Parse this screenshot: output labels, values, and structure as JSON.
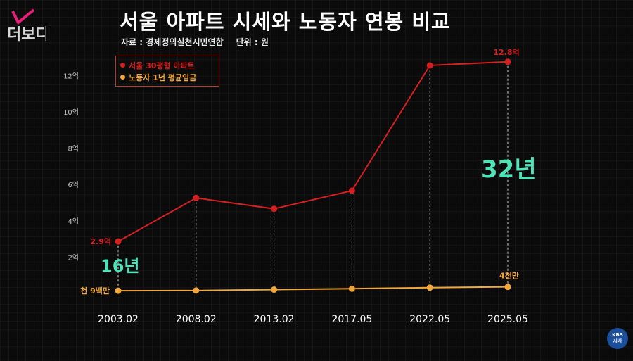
{
  "branding": {
    "show_logo_text": "더보다",
    "broadcaster_line1": "KBS",
    "broadcaster_line2": "시사"
  },
  "chart_data": {
    "type": "line",
    "title": "서울 아파트 시세와 노동자 연봉 비교",
    "source_label": "자료 : 경제정의실천시민연합",
    "unit_label": "단위 : 원",
    "x": [
      "2003.02",
      "2008.02",
      "2013.02",
      "2017.05",
      "2022.05",
      "2025.05"
    ],
    "ylim": [
      0,
      13
    ],
    "y_ticks": [
      {
        "value": 2,
        "label": "2억"
      },
      {
        "value": 4,
        "label": "4억"
      },
      {
        "value": 6,
        "label": "6억"
      },
      {
        "value": 8,
        "label": "8억"
      },
      {
        "value": 10,
        "label": "10억"
      },
      {
        "value": 12,
        "label": "12억"
      }
    ],
    "legend_position": "top-left",
    "series": [
      {
        "name": "서울 30평형 아파트",
        "color": "#d42020",
        "values": [
          2.9,
          5.3,
          4.7,
          5.7,
          12.6,
          12.8
        ]
      },
      {
        "name": "노동자 1년 평균임금",
        "color": "#f2a73c",
        "values": [
          0.19,
          0.2,
          0.25,
          0.3,
          0.36,
          0.4
        ]
      }
    ],
    "annotations": {
      "start_price": "2.9억",
      "end_price": "12.8억",
      "start_wage": "천 9백만",
      "end_wage": "4천만",
      "years_start": "16년",
      "years_end": "32년"
    }
  }
}
